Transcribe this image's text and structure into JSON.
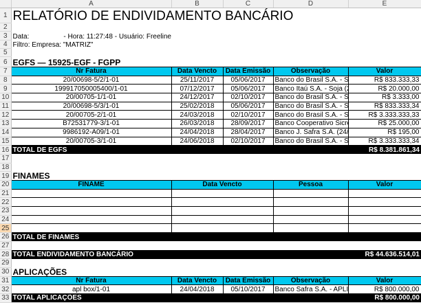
{
  "columns": [
    "A",
    "B",
    "C",
    "D",
    "E"
  ],
  "title": "RELATÓRIO DE ENDIVIDAMENTO BANCÁRIO",
  "info_line": "Data:                  - Hora: 11:27:48 - Usuário: Freeline",
  "filter_line": "Filtro:  Empresa: \"MATRIZ\"",
  "egfs": {
    "heading": "EGFS — 15925-EGF - FGPP",
    "headers": [
      "Nr Fatura",
      "Data Vencto",
      "Data Emissão",
      "Observação",
      "Valor"
    ],
    "rows": [
      [
        "20/00698-5/2/1-01",
        "25/11/2017",
        "05/06/2017",
        "Banco do Brasil S.A. - Soja",
        "R$ 833.333,33"
      ],
      [
        "199917050005400/1-01",
        "07/12/2017",
        "05/06/2017",
        "Banco Itaú S.A. - Soja (2",
        "R$ 20.000,00"
      ],
      [
        "20/00705-1/1-01",
        "24/12/2017",
        "02/10/2017",
        "Banco do Brasil S.A. - Soja",
        "R$ 3.333,00"
      ],
      [
        "20/00698-5/3/1-01",
        "25/02/2018",
        "05/06/2017",
        "Banco do Brasil S.A. - Soja",
        "R$ 833.333,34"
      ],
      [
        "20/00705-2/1-01",
        "24/03/2018",
        "02/10/2017",
        "Banco do Brasil S.A. - Soja",
        "R$ 3.333.333,33"
      ],
      [
        "B72531779-3/1-01",
        "26/03/2018",
        "28/09/2017",
        "Banco Cooperativo Sicredi",
        "R$ 25.000,00"
      ],
      [
        "9986192-A09/1-01",
        "24/04/2018",
        "28/04/2017",
        "Banco J. Safra S.A. (24/0",
        "R$ 195,00"
      ],
      [
        "20/00705-3/1-01",
        "24/06/2018",
        "02/10/2017",
        "Banco do Brasil S.A. - Soja",
        "R$ 3.333.333,34"
      ]
    ],
    "total_label": "TOTAL DE EGFS",
    "total_value": "R$ 8.381.861,34"
  },
  "finames": {
    "heading": "FINAMES",
    "headers": [
      "FINAME",
      "Data Vencto",
      "Pessoa",
      "Valor"
    ],
    "total_label": "TOTAL DE FINAMES",
    "total_value": ""
  },
  "grand_total": {
    "label": "TOTAL ENDIVIDAMENTO BANCÁRIO",
    "value": "R$ 44.636.514,01"
  },
  "aplicacoes": {
    "heading": "APLICAÇÕES",
    "headers": [
      "Nr Fatura",
      "Data Vencto",
      "Data Emissão",
      "Observação",
      "Valor"
    ],
    "rows": [
      [
        "apl box/1-01",
        "24/04/2018",
        "05/10/2017",
        "Banco Safra S.A. - APLICAÇÃO",
        "R$ 800.000,00"
      ]
    ],
    "total_label": "TOTAL APLICAÇÕES",
    "total_value": "R$ 800.000,00"
  },
  "selected_row": 25,
  "colors": {
    "header_fill": "#00c8ef",
    "total_fill": "#000000"
  }
}
